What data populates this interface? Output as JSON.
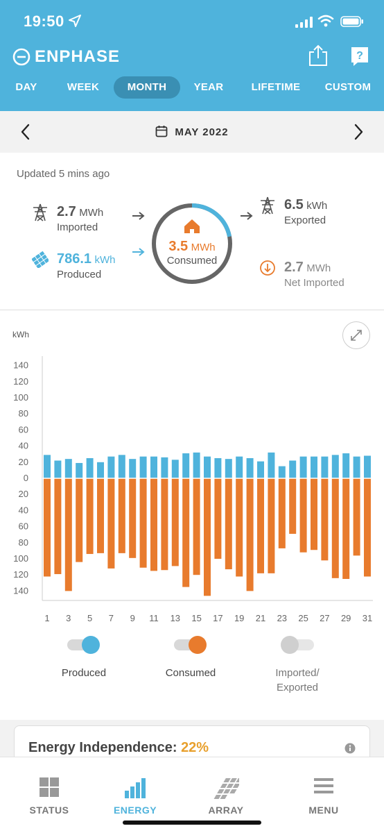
{
  "status_bar": {
    "time": "19:50"
  },
  "brand": {
    "name": "ENPHASE"
  },
  "tabs": [
    {
      "label": "DAY",
      "active": false
    },
    {
      "label": "WEEK",
      "active": false
    },
    {
      "label": "MONTH",
      "active": true
    },
    {
      "label": "YEAR",
      "active": false
    },
    {
      "label": "LIFETIME",
      "active": false
    },
    {
      "label": "CUSTOM",
      "active": false
    }
  ],
  "date_bar": {
    "label": "MAY 2022"
  },
  "summary": {
    "updated": "Updated 5 mins ago",
    "imported": {
      "value": "2.7",
      "unit": "MWh",
      "label": "Imported"
    },
    "produced": {
      "value": "786.1",
      "unit": "kWh",
      "label": "Produced"
    },
    "consumed": {
      "value": "3.5",
      "unit": "MWh",
      "label": "Consumed",
      "ring_fraction": 0.22
    },
    "exported": {
      "value": "6.5",
      "unit": "kWh",
      "label": "Exported"
    },
    "net_imported": {
      "value": "2.7",
      "unit": "MWh",
      "label": "Net Imported"
    }
  },
  "chart_data": {
    "type": "bar",
    "ylabel": "kWh",
    "y_ticks_top": [
      "140",
      "120",
      "100",
      "80",
      "60",
      "40",
      "20",
      "0"
    ],
    "y_ticks_bottom": [
      "20",
      "40",
      "60",
      "80",
      "100",
      "120",
      "140"
    ],
    "x_tick_labels": [
      "1",
      "3",
      "5",
      "7",
      "9",
      "11",
      "13",
      "15",
      "17",
      "19",
      "21",
      "23",
      "25",
      "27",
      "29",
      "31"
    ],
    "days": [
      1,
      2,
      3,
      4,
      5,
      6,
      7,
      8,
      9,
      10,
      11,
      12,
      13,
      14,
      15,
      16,
      17,
      18,
      19,
      20,
      21,
      22,
      23,
      24,
      25,
      26,
      27,
      28,
      29,
      30,
      31
    ],
    "ylim": [
      -150,
      150
    ],
    "series": [
      {
        "name": "Produced",
        "color": "#4fb3dc",
        "values": [
          29,
          22,
          24,
          19,
          25,
          20,
          27,
          29,
          24,
          27,
          27,
          26,
          23,
          31,
          32,
          27,
          25,
          24,
          27,
          25,
          21,
          32,
          15,
          22,
          27,
          27,
          27,
          29,
          31,
          27,
          28
        ]
      },
      {
        "name": "Consumed",
        "color": "#e87b2d",
        "values": [
          -122,
          -119,
          -140,
          -104,
          -94,
          -93,
          -112,
          -93,
          -99,
          -111,
          -115,
          -114,
          -109,
          -135,
          -120,
          -146,
          -100,
          -113,
          -122,
          -140,
          -118,
          -118,
          -87,
          -69,
          -92,
          -89,
          -102,
          -124,
          -125,
          -96,
          -122
        ]
      }
    ]
  },
  "legend": [
    {
      "label": "Produced",
      "on": true,
      "color": "#4fb3dc"
    },
    {
      "label": "Consumed",
      "on": true,
      "color": "#e87b2d"
    },
    {
      "label": "Imported/\nExported",
      "label_line1": "Imported/",
      "label_line2": "Exported",
      "on": false,
      "color": "#cfcfcf"
    }
  ],
  "independence": {
    "label": "Energy Independence:",
    "value": "22%"
  },
  "bottom_nav": [
    {
      "label": "STATUS",
      "icon": "grid-icon",
      "active": false
    },
    {
      "label": "ENERGY",
      "icon": "bar-chart-icon",
      "active": true
    },
    {
      "label": "ARRAY",
      "icon": "solar-panel-icon",
      "active": false
    },
    {
      "label": "MENU",
      "icon": "menu-icon",
      "active": false
    }
  ]
}
